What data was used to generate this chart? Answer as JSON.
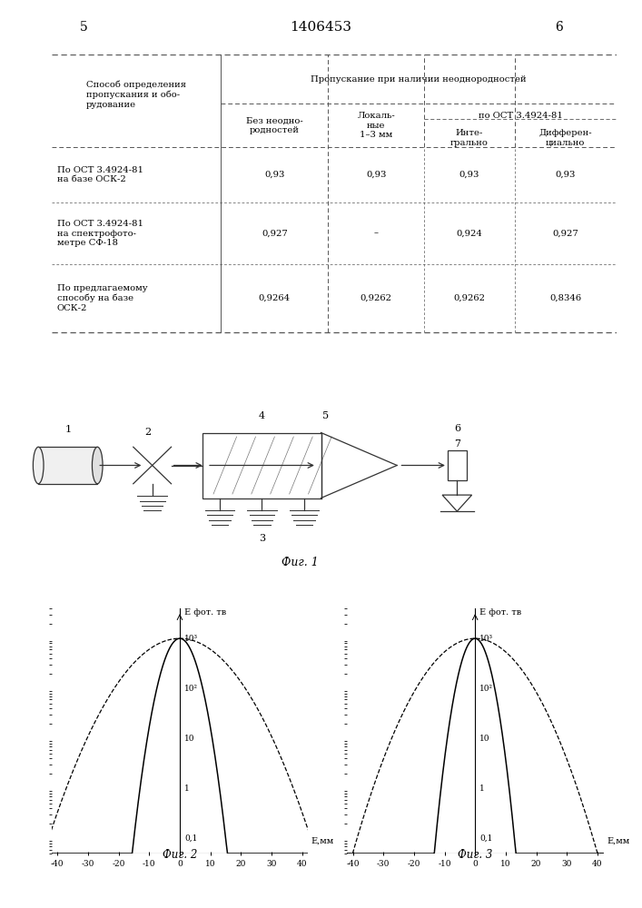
{
  "page_title": "1406453",
  "page_num_left": "5",
  "page_num_right": "6",
  "bg_color": "#ffffff",
  "table": {
    "rows": [
      {
        "label": [
          "По ОСТ 3.4924-81",
          "на базе ОСК-2"
        ],
        "v1": "0,93",
        "v2": "0,93",
        "v3": "0,93",
        "v4": "0,93"
      },
      {
        "label": [
          "По ОСТ 3.4924-81",
          "на спектрофото-",
          "метре СФ-18"
        ],
        "v1": "0,927",
        "v2": "–",
        "v3": "0,924",
        "v4": "0,927"
      },
      {
        "label": [
          "По предлагаемому",
          "способу на базе",
          "ОСК-2"
        ],
        "v1": "0,9264",
        "v2": "0,9262",
        "v3": "0,9262",
        "v4": "0,8346"
      }
    ]
  },
  "fig1_caption": "Фиг. 1",
  "fig2_caption": "Фиг. 2",
  "fig3_caption": "Фиг. 3",
  "plot_xlabel": "E,мм",
  "sigma_narrow_2": 3.5,
  "sigma_wide_2": 10.0,
  "sigma_narrow_3": 3.0,
  "sigma_wide_3": 9.0
}
